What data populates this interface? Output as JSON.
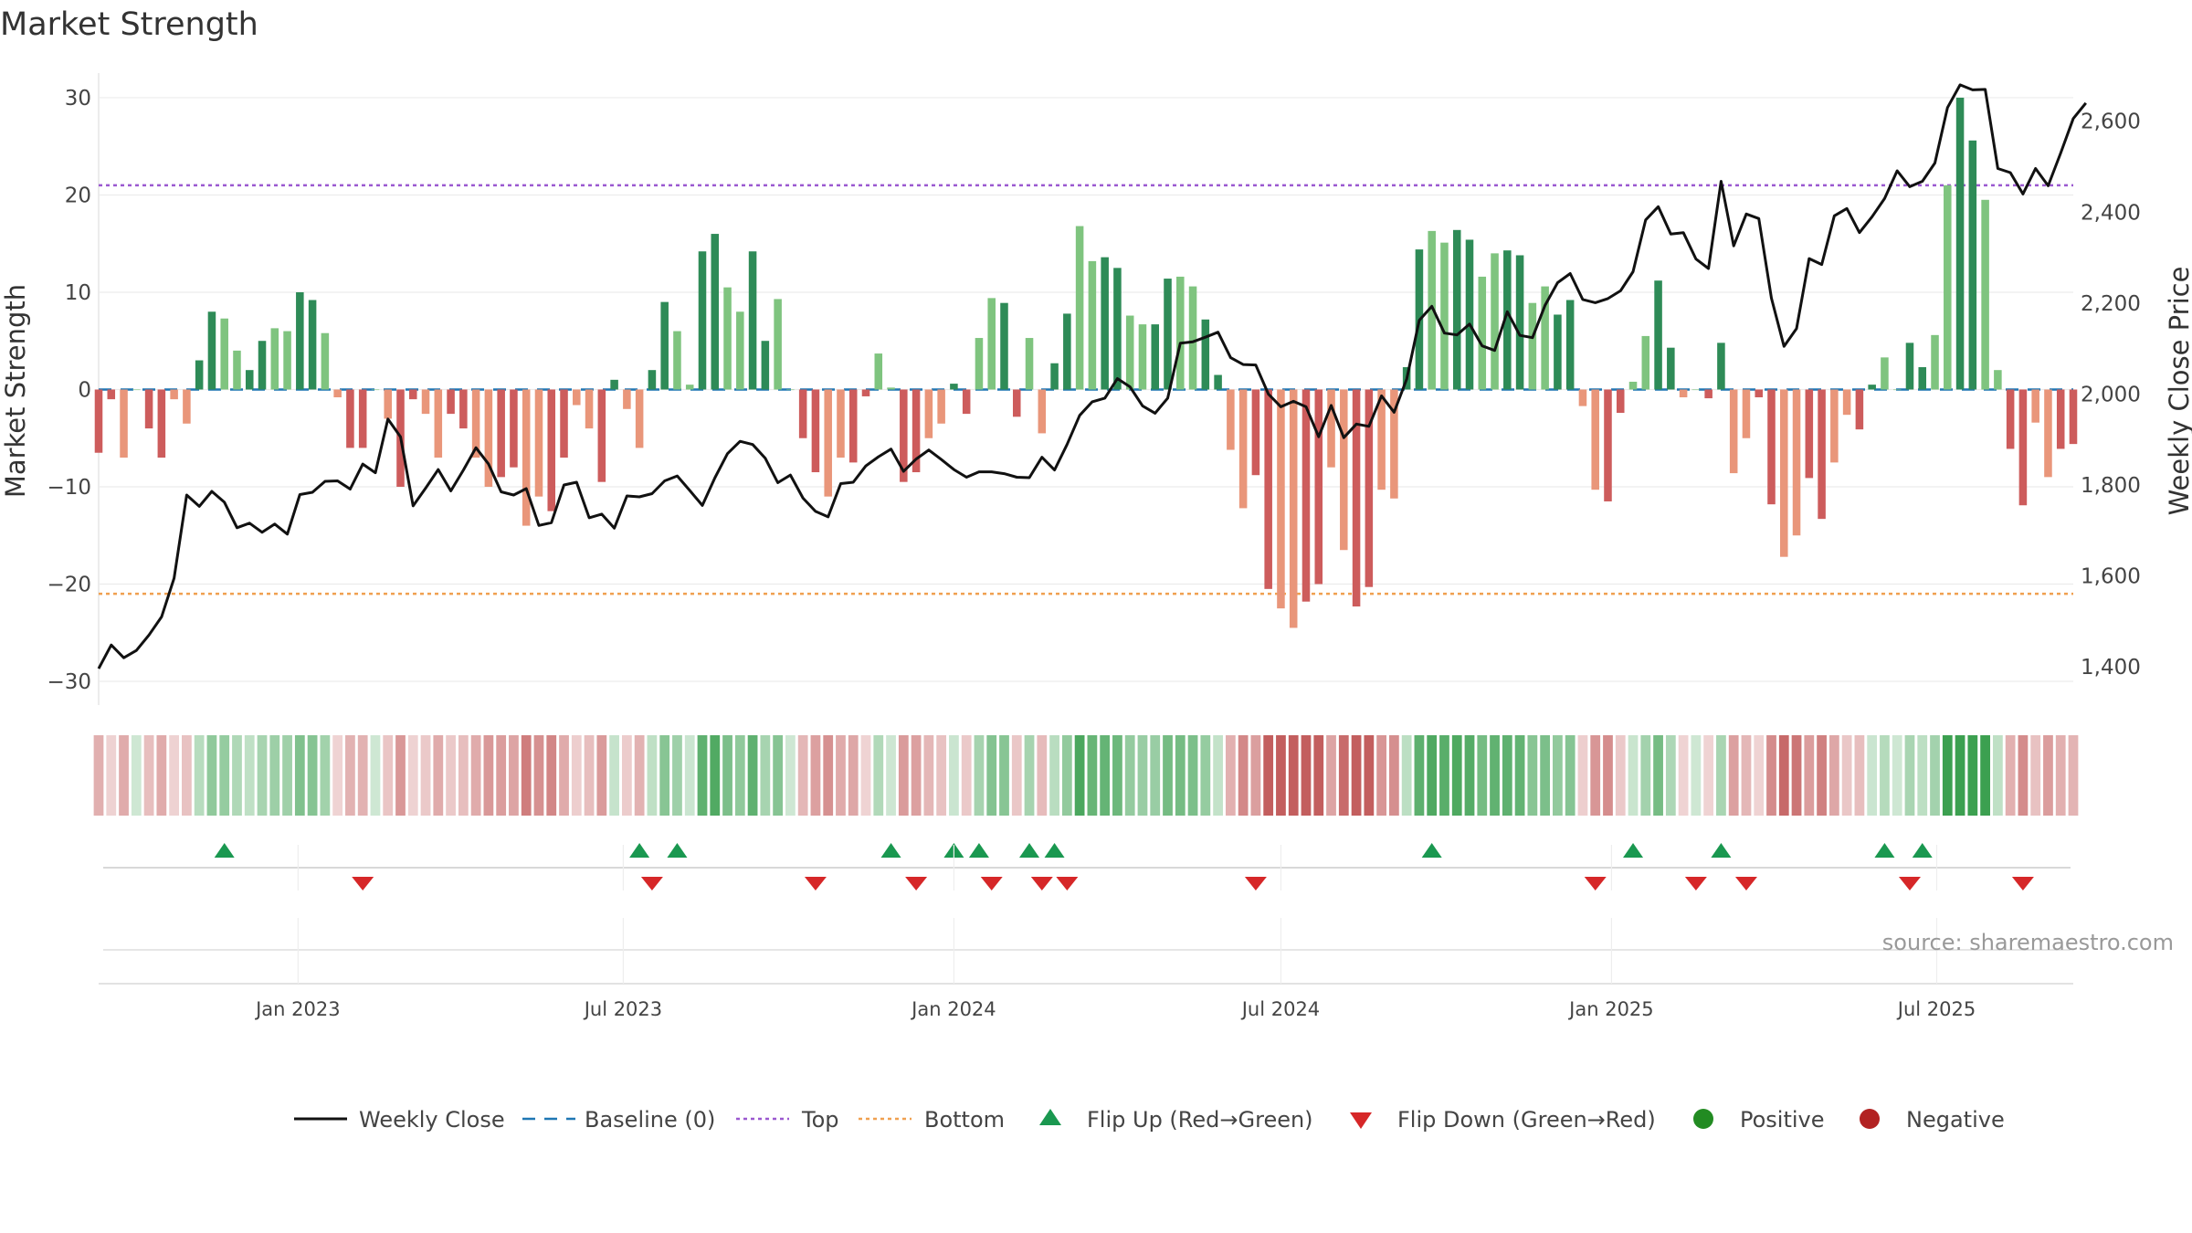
{
  "chart_data": {
    "type": "bar",
    "title": "Market Strength",
    "ylabel": "Market Strength",
    "y2label": "Weekly Close Price",
    "ylim": [
      -31.5,
      33
    ],
    "y2lim": [
      1336,
      2716
    ],
    "yticks": [
      30,
      20,
      10,
      0,
      -10,
      -20,
      -30
    ],
    "ytick_labels": [
      "30",
      "20",
      "10",
      "0",
      "−10",
      "−20",
      "−30"
    ],
    "y2ticks": [
      2600,
      2400,
      2200,
      2000,
      1800,
      1600,
      1400
    ],
    "y2tick_labels": [
      "2,600",
      "2,400",
      "2,200",
      "2,000",
      "1,800",
      "1,600",
      "1,400"
    ],
    "x_range": [
      "2022-09-12",
      "2025-09-15"
    ],
    "x_ticks": [
      "2023-01-01",
      "2023-07-01",
      "2024-01-01",
      "2024-07-01",
      "2025-01-01",
      "2025-07-01"
    ],
    "x_tick_labels": [
      "Jan 2023",
      "Jul 2023",
      "Jan 2024",
      "Jul 2024",
      "Jan 2025",
      "Jul 2025"
    ],
    "top_line": 21,
    "bottom_line": -21,
    "baseline": 0,
    "colors": {
      "positive_strong": "#2e8b57",
      "positive_weak": "#7fc47f",
      "negative_strong": "#cd5c5c",
      "negative_weak": "#e9967a",
      "close": "#111111",
      "baseline": "#1f77b4",
      "top": "#9b59d0",
      "bottom": "#f0a050",
      "flip_up": "#1a9850",
      "flip_down": "#d62728",
      "positive_dot": "#228b22",
      "negative_dot": "#b22222"
    },
    "series": [
      {
        "name": "Market Strength",
        "kind": "bar",
        "start": "2022-09-12",
        "step_days": 7,
        "values": [
          -6.5,
          -1,
          -7,
          0,
          -4,
          -7,
          -1,
          -3.5,
          3,
          8,
          7.3,
          4,
          2,
          5,
          6.3,
          6,
          10,
          9.2,
          5.8,
          -0.8,
          -6,
          -6,
          0,
          -3,
          -10,
          -1,
          -2.5,
          -7,
          -2.5,
          -4,
          -7,
          -10,
          -9,
          -8,
          -14,
          -11,
          -12.5,
          -7,
          -1.6,
          -4,
          -9.5,
          1,
          -2,
          -6,
          2,
          9,
          6,
          0.5,
          14.2,
          16,
          10.5,
          8,
          14.2,
          5,
          9.3,
          0,
          -5,
          -8.5,
          -11,
          -7,
          -7.5,
          -0.7,
          3.7,
          0.2,
          -9.5,
          -8.5,
          -5,
          -3.5,
          0.6,
          -2.5,
          5.3,
          9.4,
          8.9,
          -2.8,
          5.3,
          -4.5,
          2.7,
          7.8,
          16.8,
          13.2,
          13.6,
          12.5,
          7.6,
          6.7,
          6.7,
          11.4,
          11.6,
          10.6,
          7.2,
          1.5,
          -6.2,
          -12.2,
          -8.8,
          -20.5,
          -22.5,
          -24.5,
          -21.8,
          -20,
          -8,
          -16.5,
          -22.3,
          -20.3,
          -10.3,
          -11.2,
          2.3,
          14.4,
          16.3,
          15.1,
          16.4,
          15.4,
          11.6,
          14,
          14.3,
          13.8,
          8.9,
          10.6,
          7.7,
          9.2,
          -1.7,
          -10.3,
          -11.5,
          -2.4,
          0.8,
          5.5,
          11.2,
          4.3,
          -0.8,
          0,
          -0.9,
          4.8,
          -8.6,
          -5,
          -0.8,
          -11.8,
          -17.2,
          -15,
          -9.1,
          -13.3,
          -7.5,
          -2.6,
          -4.1,
          0.5,
          3.3,
          0,
          4.8,
          2.3,
          5.6,
          21,
          30,
          25.6,
          19.5,
          2,
          -6.1,
          -11.9,
          -3.4,
          -9,
          -6.1,
          -5.6
        ]
      },
      {
        "name": "Weekly Close",
        "kind": "line",
        "start": "2022-09-12",
        "step_days": 7,
        "values": [
          1396,
          1448,
          1420,
          1436,
          1470,
          1510,
          1595,
          1778,
          1753,
          1786,
          1762,
          1706,
          1716,
          1696,
          1714,
          1692,
          1779,
          1784,
          1808,
          1809,
          1791,
          1846,
          1827,
          1945,
          1906,
          1754,
          1793,
          1834,
          1787,
          1833,
          1882,
          1846,
          1785,
          1778,
          1792,
          1711,
          1717,
          1800,
          1806,
          1728,
          1736,
          1705,
          1776,
          1774,
          1781,
          1809,
          1820,
          1788,
          1755,
          1816,
          1869,
          1896,
          1889,
          1859,
          1805,
          1822,
          1771,
          1742,
          1730,
          1803,
          1806,
          1842,
          1862,
          1879,
          1830,
          1857,
          1877,
          1856,
          1834,
          1817,
          1829,
          1829,
          1825,
          1817,
          1816,
          1861,
          1833,
          1889,
          1953,
          1983,
          1991,
          2034,
          2016,
          1974,
          1958,
          1991,
          2112,
          2115,
          2125,
          2136,
          2080,
          2065,
          2064,
          2000,
          1972,
          1984,
          1972,
          1906,
          1975,
          1904,
          1934,
          1929,
          1996,
          1960,
          2033,
          2162,
          2193,
          2134,
          2130,
          2154,
          2106,
          2096,
          2181,
          2129,
          2124,
          2195,
          2245,
          2265,
          2208,
          2201,
          2210,
          2227,
          2269,
          2383,
          2412,
          2352,
          2355,
          2297,
          2276,
          2468,
          2326,
          2396,
          2386,
          2211,
          2105,
          2144,
          2298,
          2285,
          2392,
          2408,
          2355,
          2390,
          2430,
          2491,
          2456,
          2468,
          2508,
          2630,
          2680,
          2669,
          2670,
          2496,
          2487,
          2440,
          2496,
          2458,
          2530,
          2606,
          2640
        ]
      }
    ],
    "bar_shading": {
      "band_id": "strength-heat-band",
      "levels": [
        "strong",
        "weak"
      ]
    },
    "flip_up_dates": [
      "2022-11-21",
      "2023-07-10",
      "2023-07-31",
      "2023-11-27",
      "2024-01-01",
      "2024-01-15",
      "2024-02-12",
      "2024-02-26",
      "2024-09-23",
      "2025-01-13",
      "2025-03-03",
      "2025-06-02",
      "2025-06-23"
    ],
    "flip_down_dates": [
      "2023-02-06",
      "2023-07-17",
      "2023-10-16",
      "2023-12-11",
      "2024-01-22",
      "2024-02-19",
      "2024-03-04",
      "2024-06-17",
      "2024-12-23",
      "2025-02-17",
      "2025-03-17",
      "2025-06-16",
      "2025-08-18"
    ],
    "legend": [
      {
        "label": "Weekly Close",
        "kind": "line"
      },
      {
        "label": "Baseline (0)",
        "kind": "dash"
      },
      {
        "label": "Top",
        "kind": "dot-purple"
      },
      {
        "label": "Bottom",
        "kind": "dot-orange"
      },
      {
        "label": "Flip Up (Red→Green)",
        "kind": "tri-up"
      },
      {
        "label": "Flip Down (Green→Red)",
        "kind": "tri-down"
      },
      {
        "label": "Positive",
        "kind": "dot-green"
      },
      {
        "label": "Negative",
        "kind": "dot-red"
      }
    ],
    "legend_position": "bottom",
    "source": "source: sharemaestro.com",
    "grid": true
  }
}
